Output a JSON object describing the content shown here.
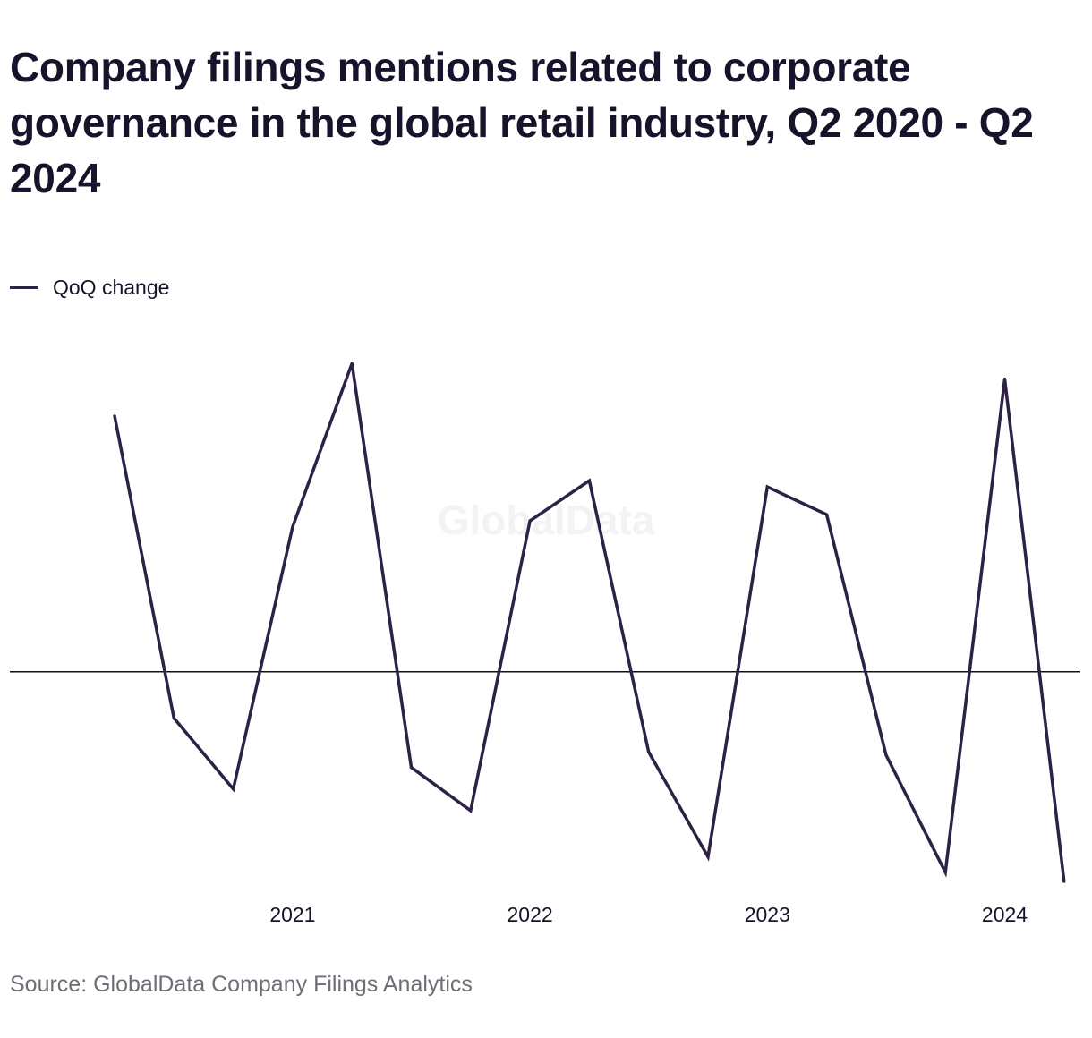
{
  "title": "Company filings mentions related to corporate governance in the global retail industry, Q2 2020 - Q2 2024",
  "legend": {
    "label": "QoQ change"
  },
  "watermark": "GlobalData",
  "source": "Source: GlobalData Company Filings Analytics",
  "colors": {
    "series": "#2e2146",
    "zero_line": "#111111",
    "text": "#16142a",
    "source_text": "#6f6e78"
  },
  "chart_data": {
    "type": "line",
    "title": "Company filings mentions related to corporate governance in the global retail industry, Q2 2020 - Q2 2024",
    "xlabel": "",
    "ylabel": "",
    "x": [
      "Q2 2020",
      "Q3 2020",
      "Q4 2020",
      "Q1 2021",
      "Q2 2021",
      "Q3 2021",
      "Q4 2021",
      "Q1 2022",
      "Q2 2022",
      "Q3 2022",
      "Q4 2022",
      "Q1 2023",
      "Q2 2023",
      "Q3 2023",
      "Q4 2023",
      "Q1 2024",
      "Q2 2024"
    ],
    "x_tick_labels": [
      {
        "x": "Q1 2021",
        "label": "2021"
      },
      {
        "x": "Q1 2022",
        "label": "2022"
      },
      {
        "x": "Q1 2023",
        "label": "2023"
      },
      {
        "x": "Q1 2024",
        "label": "2024"
      }
    ],
    "series": [
      {
        "name": "QoQ change",
        "values": [
          0.83,
          -0.15,
          -0.38,
          0.47,
          1.0,
          -0.31,
          -0.45,
          0.49,
          0.62,
          -0.26,
          -0.6,
          0.6,
          0.51,
          -0.27,
          -0.65,
          0.95,
          -0.68
        ]
      }
    ],
    "ylim": [
      -0.7,
      1.05
    ],
    "zero_line": true,
    "grid": false,
    "y_axis_labels": false,
    "legend_position": "top-left"
  }
}
